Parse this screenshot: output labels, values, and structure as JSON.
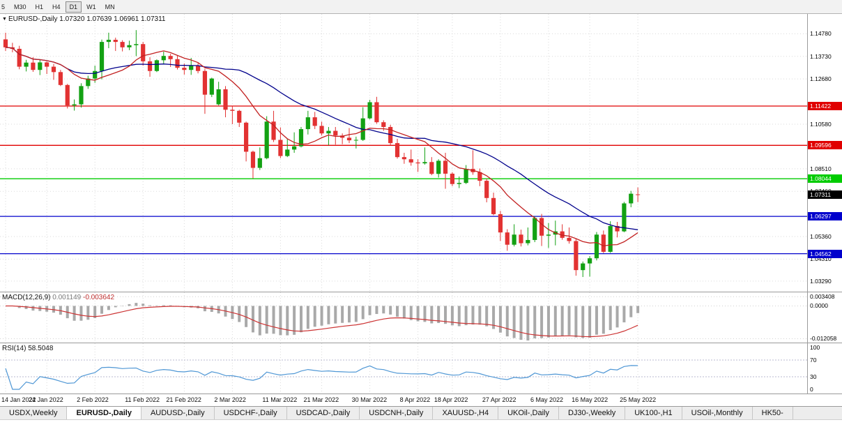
{
  "toolbar": {
    "timeframes": [
      {
        "label": "5",
        "active": false
      },
      {
        "label": "M30",
        "active": false
      },
      {
        "label": "H1",
        "active": false
      },
      {
        "label": "H4",
        "active": false
      },
      {
        "label": "D1",
        "active": true
      },
      {
        "label": "W1",
        "active": false
      },
      {
        "label": "MN",
        "active": false
      }
    ]
  },
  "main_header": {
    "expander": "▼",
    "symbol": "EURUSD-,Daily",
    "ohlc": "1.07320 1.07639 1.06961 1.07311"
  },
  "chart_data": {
    "type": "candlestick",
    "symbol": "EURUSD-",
    "timeframe": "Daily",
    "title": "EURUSD-,Daily",
    "ohlc_display": {
      "open": "1.07320",
      "high": "1.07639",
      "low": "1.06961",
      "close": "1.07311"
    },
    "colors": {
      "up": "#13a113",
      "down": "#e23232"
    },
    "layout": {
      "x0": 8,
      "dx": 9.86,
      "grid": "dotted",
      "legend": "none"
    },
    "y_axis": {
      "min": 1.028,
      "max": 1.157,
      "ticks": [
        {
          "v": 1.1478,
          "label": "1.14780"
        },
        {
          "v": 1.1373,
          "label": "1.13730"
        },
        {
          "v": 1.1268,
          "label": "1.12680"
        },
        {
          "v": 1.1058,
          "label": "1.10580"
        },
        {
          "v": 1.0851,
          "label": "1.08510"
        },
        {
          "v": 1.0746,
          "label": "1.07460"
        },
        {
          "v": 1.0536,
          "label": "1.05360"
        },
        {
          "v": 1.0431,
          "label": "1.04310"
        },
        {
          "v": 1.0329,
          "label": "1.03290"
        }
      ]
    },
    "x_ticks": [
      {
        "i": 0,
        "label": "14 Jan 2022"
      },
      {
        "i": 6,
        "label": "24 Jan 2022"
      },
      {
        "i": 13,
        "label": "2 Feb 2022"
      },
      {
        "i": 20,
        "label": "11 Feb 2022"
      },
      {
        "i": 26,
        "label": "21 Feb 2022"
      },
      {
        "i": 33,
        "label": "2 Mar 2022"
      },
      {
        "i": 40,
        "label": "11 Mar 2022"
      },
      {
        "i": 46,
        "label": "21 Mar 2022"
      },
      {
        "i": 53,
        "label": "30 Mar 2022"
      },
      {
        "i": 60,
        "label": "8 Apr 2022"
      },
      {
        "i": 65,
        "label": "18 Apr 2022"
      },
      {
        "i": 72,
        "label": "27 Apr 2022"
      },
      {
        "i": 79,
        "label": "6 May 2022"
      },
      {
        "i": 85,
        "label": "16 May 2022"
      },
      {
        "i": 92,
        "label": "25 May 2022"
      }
    ],
    "levels": [
      {
        "price": 1.11422,
        "label": "1.11422",
        "color": "#e00000"
      },
      {
        "price": 1.09596,
        "label": "1.09596",
        "color": "#e00000"
      },
      {
        "price": 1.08044,
        "label": "1.08044",
        "color": "#00cc00"
      },
      {
        "price": 1.06297,
        "label": "1.06297",
        "color": "#0000cc"
      },
      {
        "price": 1.04562,
        "label": "1.04562",
        "color": "#0000cc"
      }
    ],
    "current_price": {
      "price": 1.07311,
      "label": "1.07311",
      "bg": "#000000"
    },
    "ma": [
      {
        "period": 24,
        "color": "#00008b"
      },
      {
        "period": 10,
        "color": "#c22121"
      }
    ],
    "candles": [
      [
        1.1452,
        1.1483,
        1.1398,
        1.1415
      ],
      [
        1.1415,
        1.1436,
        1.1392,
        1.1408
      ],
      [
        1.1408,
        1.1422,
        1.1313,
        1.1325
      ],
      [
        1.1325,
        1.1357,
        1.1303,
        1.1344
      ],
      [
        1.1344,
        1.1369,
        1.1301,
        1.131
      ],
      [
        1.131,
        1.136,
        1.1286,
        1.1345
      ],
      [
        1.1345,
        1.1349,
        1.1291,
        1.1325
      ],
      [
        1.1325,
        1.1338,
        1.1264,
        1.13
      ],
      [
        1.13,
        1.131,
        1.1235,
        1.124
      ],
      [
        1.124,
        1.1245,
        1.1131,
        1.1145
      ],
      [
        1.1145,
        1.1173,
        1.1121,
        1.115
      ],
      [
        1.115,
        1.1248,
        1.1135,
        1.1235
      ],
      [
        1.1235,
        1.1283,
        1.1222,
        1.127
      ],
      [
        1.127,
        1.133,
        1.125,
        1.1305
      ],
      [
        1.1305,
        1.1451,
        1.1266,
        1.144
      ],
      [
        1.144,
        1.1483,
        1.1411,
        1.145
      ],
      [
        1.145,
        1.146,
        1.1398,
        1.144
      ],
      [
        1.144,
        1.1448,
        1.1396,
        1.1415
      ],
      [
        1.1415,
        1.1446,
        1.1402,
        1.1425
      ],
      [
        1.1425,
        1.1495,
        1.1374,
        1.143
      ],
      [
        1.143,
        1.144,
        1.133,
        1.135
      ],
      [
        1.135,
        1.1369,
        1.1278,
        1.1305
      ],
      [
        1.1305,
        1.1359,
        1.13,
        1.1355
      ],
      [
        1.1355,
        1.1395,
        1.134,
        1.1375
      ],
      [
        1.1375,
        1.1385,
        1.1324,
        1.136
      ],
      [
        1.136,
        1.1376,
        1.1312,
        1.132
      ],
      [
        1.132,
        1.134,
        1.1288,
        1.131
      ],
      [
        1.131,
        1.1366,
        1.1287,
        1.133
      ],
      [
        1.133,
        1.1342,
        1.1294,
        1.1305
      ],
      [
        1.1305,
        1.1315,
        1.1106,
        1.1195
      ],
      [
        1.1195,
        1.1274,
        1.1184,
        1.127
      ],
      [
        1.115,
        1.1255,
        1.1145,
        1.122
      ],
      [
        1.122,
        1.1235,
        1.109,
        1.1125
      ],
      [
        1.1125,
        1.114,
        1.1058,
        1.112
      ],
      [
        1.112,
        1.1125,
        1.1045,
        1.1065
      ],
      [
        1.1065,
        1.107,
        1.0885,
        1.093
      ],
      [
        1.093,
        1.0935,
        1.0806,
        1.0855
      ],
      [
        1.0855,
        1.095,
        1.0845,
        1.09
      ],
      [
        1.09,
        1.1095,
        1.0895,
        1.107
      ],
      [
        1.107,
        1.112,
        1.0975,
        1.0985
      ],
      [
        1.0985,
        1.1043,
        1.09,
        1.091
      ],
      [
        1.091,
        1.099,
        1.0905,
        1.094
      ],
      [
        1.094,
        1.102,
        1.0925,
        1.0955
      ],
      [
        1.0955,
        1.1045,
        1.095,
        1.1035
      ],
      [
        1.1035,
        1.112,
        1.101,
        1.109
      ],
      [
        1.109,
        1.1115,
        1.1035,
        1.105
      ],
      [
        1.105,
        1.107,
        1.1005,
        1.1015
      ],
      [
        1.1015,
        1.1045,
        1.096,
        1.1027
      ],
      [
        1.1027,
        1.1045,
        1.0963,
        1.1005
      ],
      [
        1.1005,
        1.1015,
        1.0965,
        1.0995
      ],
      [
        1.0995,
        1.104,
        1.097,
        1.0983
      ],
      [
        1.0983,
        1.1,
        1.0945,
        1.0985
      ],
      [
        1.0985,
        1.1137,
        1.098,
        1.1085
      ],
      [
        1.1085,
        1.1171,
        1.108,
        1.116
      ],
      [
        1.116,
        1.1185,
        1.106,
        1.1067
      ],
      [
        1.1067,
        1.1076,
        1.1027,
        1.1045
      ],
      [
        1.1045,
        1.1055,
        1.096,
        1.097
      ],
      [
        1.097,
        1.099,
        1.0898,
        1.0905
      ],
      [
        1.0905,
        1.0925,
        1.0874,
        1.0895
      ],
      [
        1.0895,
        1.094,
        1.0865,
        1.088
      ],
      [
        1.088,
        1.0895,
        1.0836,
        1.0876
      ],
      [
        1.0876,
        1.095,
        1.087,
        1.0882
      ],
      [
        1.0882,
        1.0905,
        1.0821,
        1.0827
      ],
      [
        1.0827,
        1.0895,
        1.081,
        1.0888
      ],
      [
        1.0888,
        1.0925,
        1.0758,
        1.0828
      ],
      [
        1.0828,
        1.0835,
        1.077,
        1.078
      ],
      [
        1.078,
        1.0815,
        1.0761,
        1.0785
      ],
      [
        1.0785,
        1.0868,
        1.078,
        1.085
      ],
      [
        1.085,
        1.0937,
        1.0823,
        1.0835
      ],
      [
        1.0835,
        1.0852,
        1.077,
        1.0795
      ],
      [
        1.0795,
        1.0805,
        1.0695,
        1.0715
      ],
      [
        1.0715,
        1.074,
        1.0635,
        1.064
      ],
      [
        1.064,
        1.0655,
        1.0515,
        1.0555
      ],
      [
        1.0555,
        1.057,
        1.047,
        1.0498
      ],
      [
        1.0498,
        1.0593,
        1.049,
        1.0545
      ],
      [
        1.0545,
        1.0568,
        1.049,
        1.0505
      ],
      [
        1.0505,
        1.0578,
        1.0495,
        1.052
      ],
      [
        1.052,
        1.063,
        1.051,
        1.0622
      ],
      [
        1.0622,
        1.0641,
        1.0492,
        1.054
      ],
      [
        1.054,
        1.0599,
        1.0483,
        1.0545
      ],
      [
        1.0545,
        1.061,
        1.0495,
        1.056
      ],
      [
        1.056,
        1.0593,
        1.0521,
        1.053
      ],
      [
        1.053,
        1.0578,
        1.0503,
        1.0515
      ],
      [
        1.0515,
        1.0525,
        1.0354,
        1.038
      ],
      [
        1.038,
        1.042,
        1.0348,
        1.0411
      ],
      [
        1.0411,
        1.0445,
        1.035,
        1.0435
      ],
      [
        1.0435,
        1.0557,
        1.0425,
        1.0545
      ],
      [
        1.0545,
        1.0564,
        1.0459,
        1.0465
      ],
      [
        1.0465,
        1.0607,
        1.046,
        1.0585
      ],
      [
        1.0585,
        1.0604,
        1.0532,
        1.056
      ],
      [
        1.056,
        1.0697,
        1.0556,
        1.069
      ],
      [
        1.069,
        1.0748,
        1.0672,
        1.0735
      ],
      [
        1.0732,
        1.0764,
        1.0696,
        1.0731
      ]
    ]
  },
  "macd": {
    "name": "MACD(12,26,9)",
    "value_main": "0.001149",
    "value_signal": "-0.003642",
    "fast": 12,
    "slow": 26,
    "signal": 9,
    "range": {
      "min": -0.0135,
      "max": 0.005
    },
    "axis_ticks": [
      {
        "v": 0.003408,
        "label": "0.003408"
      },
      {
        "v": 0.0,
        "label": "0.0000"
      },
      {
        "v": -0.012058,
        "label": "-0.012058"
      }
    ],
    "colors": {
      "histogram": "#a9a9a9",
      "signal": "#c33"
    }
  },
  "rsi": {
    "name": "RSI(14)",
    "value": "58.5048",
    "period": 14,
    "color": "#4f97d5",
    "level_lines": [
      70,
      30
    ],
    "axis_ticks": [
      {
        "v": 100,
        "label": "100"
      },
      {
        "v": 70,
        "label": "70"
      },
      {
        "v": 30,
        "label": "30"
      },
      {
        "v": 0,
        "label": "0"
      }
    ]
  },
  "tabs": [
    {
      "label": "USDX,Weekly",
      "active": false
    },
    {
      "label": "EURUSD-,Daily",
      "active": true
    },
    {
      "label": "AUDUSD-,Daily",
      "active": false
    },
    {
      "label": "USDCHF-,Daily",
      "active": false
    },
    {
      "label": "USDCAD-,Daily",
      "active": false
    },
    {
      "label": "USDCNH-,Daily",
      "active": false
    },
    {
      "label": "XAUUSD-,H4",
      "active": false
    },
    {
      "label": "UKOil-,Daily",
      "active": false
    },
    {
      "label": "DJ30-,Weekly",
      "active": false
    },
    {
      "label": "UK100-,H1",
      "active": false
    },
    {
      "label": "USOil-,Monthly",
      "active": false
    },
    {
      "label": "HK50-",
      "active": false
    }
  ]
}
